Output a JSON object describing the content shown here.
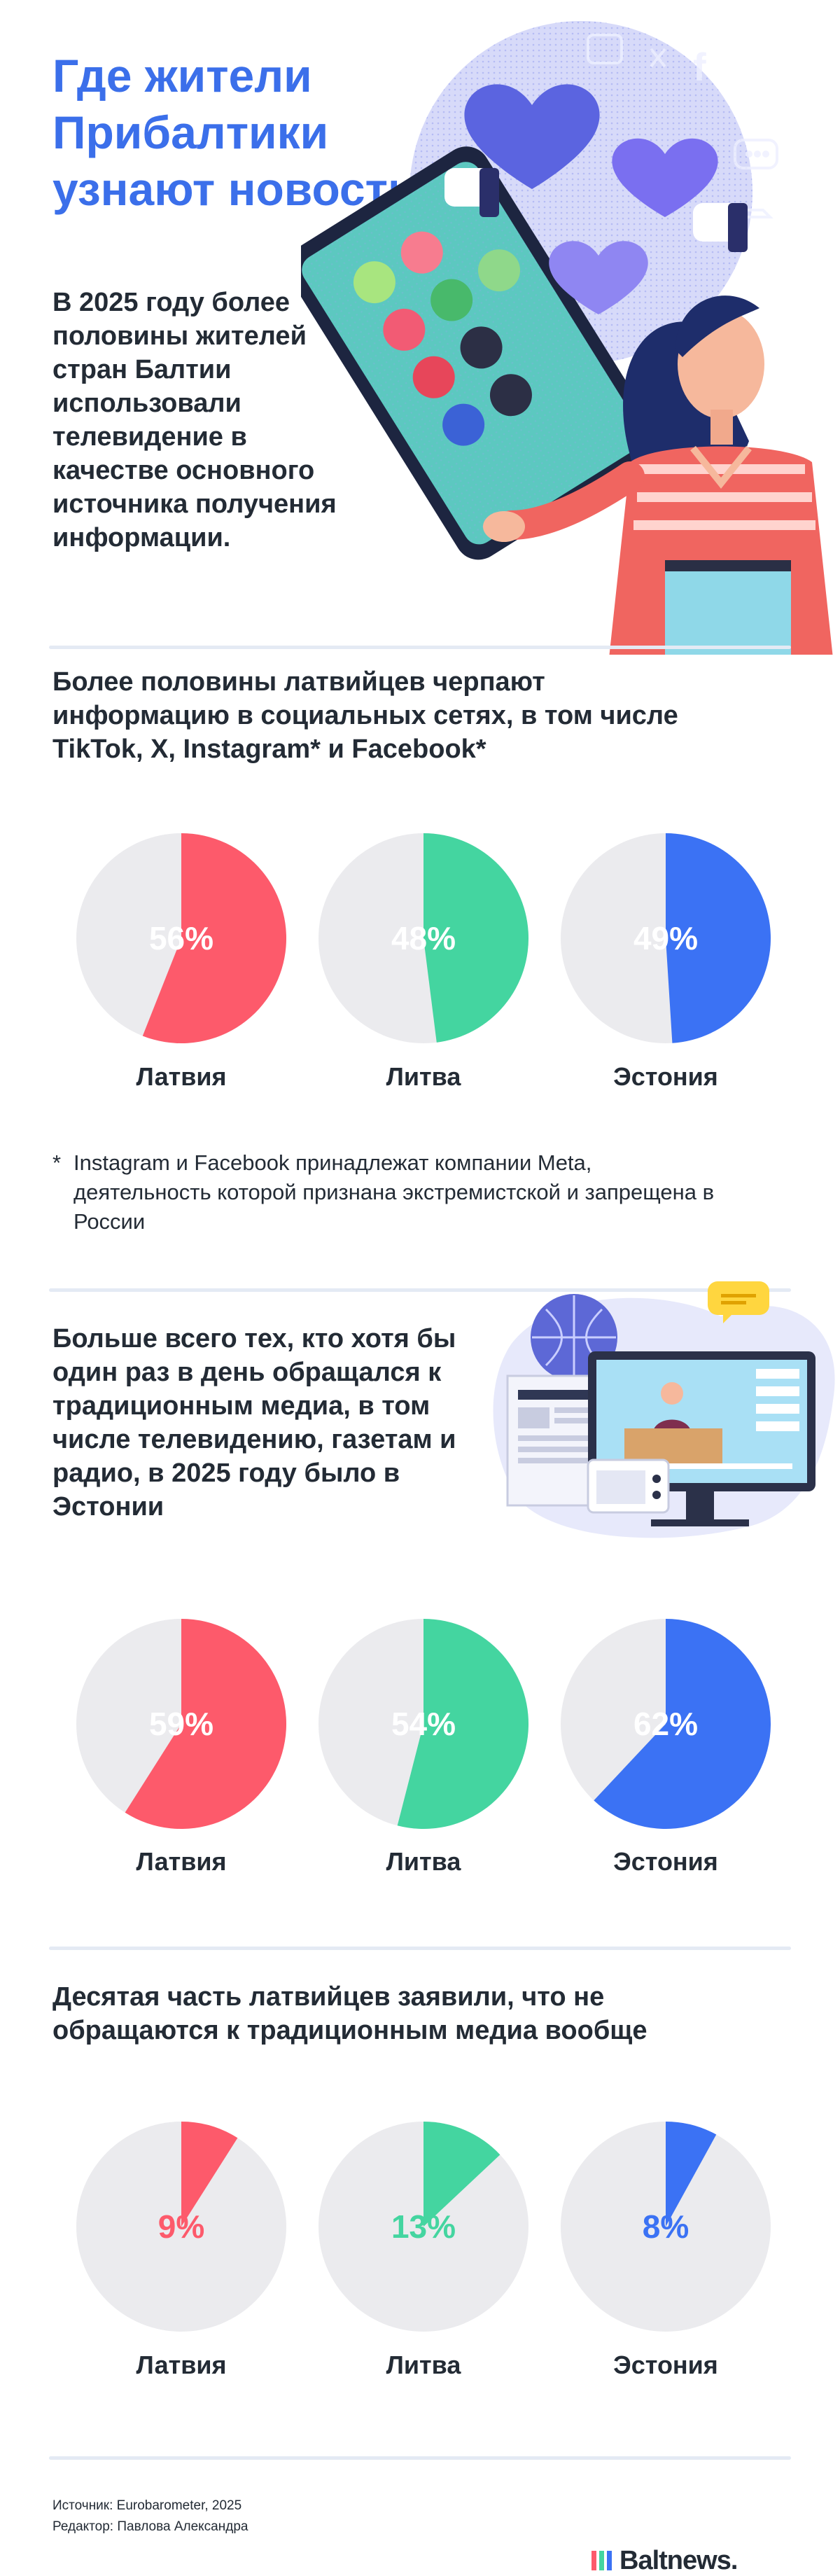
{
  "title": "Где жители Прибалтики узнают новости",
  "intro": "В 2025 году более половины жителей стран Балтии использовали телевидение в качестве основного источника получения информации.",
  "section1_heading": "Более половины латвийцев черпают информацию в социальных сетях, в том числе TikTok, X, Instagram* и Facebook*",
  "footnote": "Instagram и Facebook принадлежат компании Meta, деятельность которой признана экстремистской и запрещена в России",
  "footnote_marker": "*",
  "section2_heading": "Больше всего тех, кто хотя бы один раз в день обращался к традиционным медиа, в том числе телевидению, газетам и радио, в 2025 году было в Эстонии",
  "section3_heading": "Десятая часть латвийцев заявили, что не обращаются к традиционным медиа вообще",
  "source": "Источник: Eurobarometer, 2025",
  "editor": "Редактор: Павлова Александра",
  "logo": "Baltnews.",
  "colors": {
    "latvia": "#fd5a6b",
    "lithuania": "#44d5a0",
    "estonia": "#3b72f4",
    "base": "#ebebee",
    "title": "#3b6fea"
  },
  "chart_data": [
    {
      "type": "pie",
      "title": "Более половины латвийцев черпают информацию в социальных сетях, в том числе TikTok, X, Instagram* и Facebook*",
      "categories": [
        "Латвия",
        "Литва",
        "Эстония"
      ],
      "values": [
        56,
        48,
        49
      ],
      "labels": [
        "56%",
        "48%",
        "49%"
      ],
      "unit": "%"
    },
    {
      "type": "pie",
      "title": "Больше всего тех, кто хотя бы один раз в день обращался к традиционным медиа, в том числе телевидению, газетам и радио, в 2025 году было в Эстонии",
      "categories": [
        "Латвия",
        "Литва",
        "Эстония"
      ],
      "values": [
        59,
        54,
        62
      ],
      "labels": [
        "59%",
        "54%",
        "62%"
      ],
      "unit": "%"
    },
    {
      "type": "pie",
      "title": "Десятая часть латвийцев заявили, что не обращаются к традиционным медиа вообще",
      "categories": [
        "Латвия",
        "Литва",
        "Эстония"
      ],
      "values": [
        9,
        13,
        8
      ],
      "labels": [
        "9%",
        "13%",
        "8%"
      ],
      "unit": "%"
    }
  ]
}
